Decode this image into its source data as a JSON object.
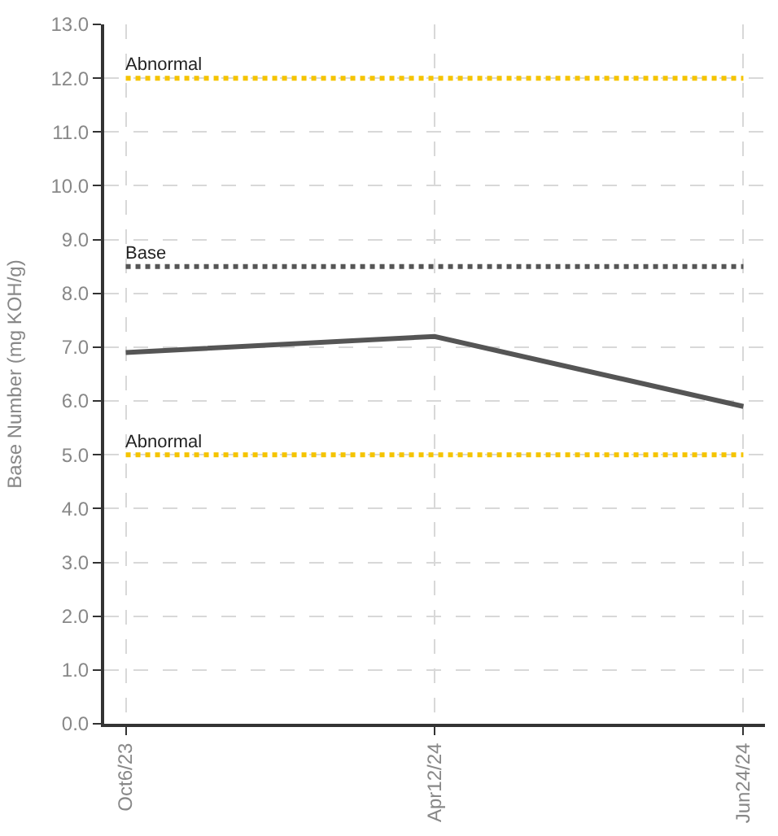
{
  "chart_data": {
    "type": "line",
    "ylabel": "Base Number (mg KOH/g)",
    "categories": [
      "Oct6/23",
      "Apr12/24",
      "Jun24/24"
    ],
    "series": [
      {
        "color": "#555555",
        "values": [
          6.9,
          7.2,
          5.9
        ]
      }
    ],
    "ylim": [
      0,
      13
    ],
    "yticks": [
      {
        "value": 0,
        "label": "0.0"
      },
      {
        "value": 1,
        "label": "1.0"
      },
      {
        "value": 2,
        "label": "2.0"
      },
      {
        "value": 3,
        "label": "3.0"
      },
      {
        "value": 4,
        "label": "4.0"
      },
      {
        "value": 5,
        "label": "5.0"
      },
      {
        "value": 6,
        "label": "6.0"
      },
      {
        "value": 7,
        "label": "7.0"
      },
      {
        "value": 8,
        "label": "8.0"
      },
      {
        "value": 9,
        "label": "9.0"
      },
      {
        "value": 10,
        "label": "10.0"
      },
      {
        "value": 11,
        "label": "11.0"
      },
      {
        "value": 12,
        "label": "12.0"
      },
      {
        "value": 13,
        "label": "13.0"
      }
    ],
    "ref_lines": [
      {
        "axis": "y",
        "value": 12,
        "label": "Abnormal",
        "color": "#f5c400",
        "line_style": "dotted"
      },
      {
        "axis": "y",
        "value": 8.5,
        "label": "Base",
        "color": "#555555",
        "line_style": "dotted"
      },
      {
        "axis": "y",
        "value": 5,
        "label": "Abnormal",
        "color": "#f5c400",
        "line_style": "dotted"
      }
    ],
    "grid": true,
    "marker": "none",
    "line_style": "solid"
  }
}
